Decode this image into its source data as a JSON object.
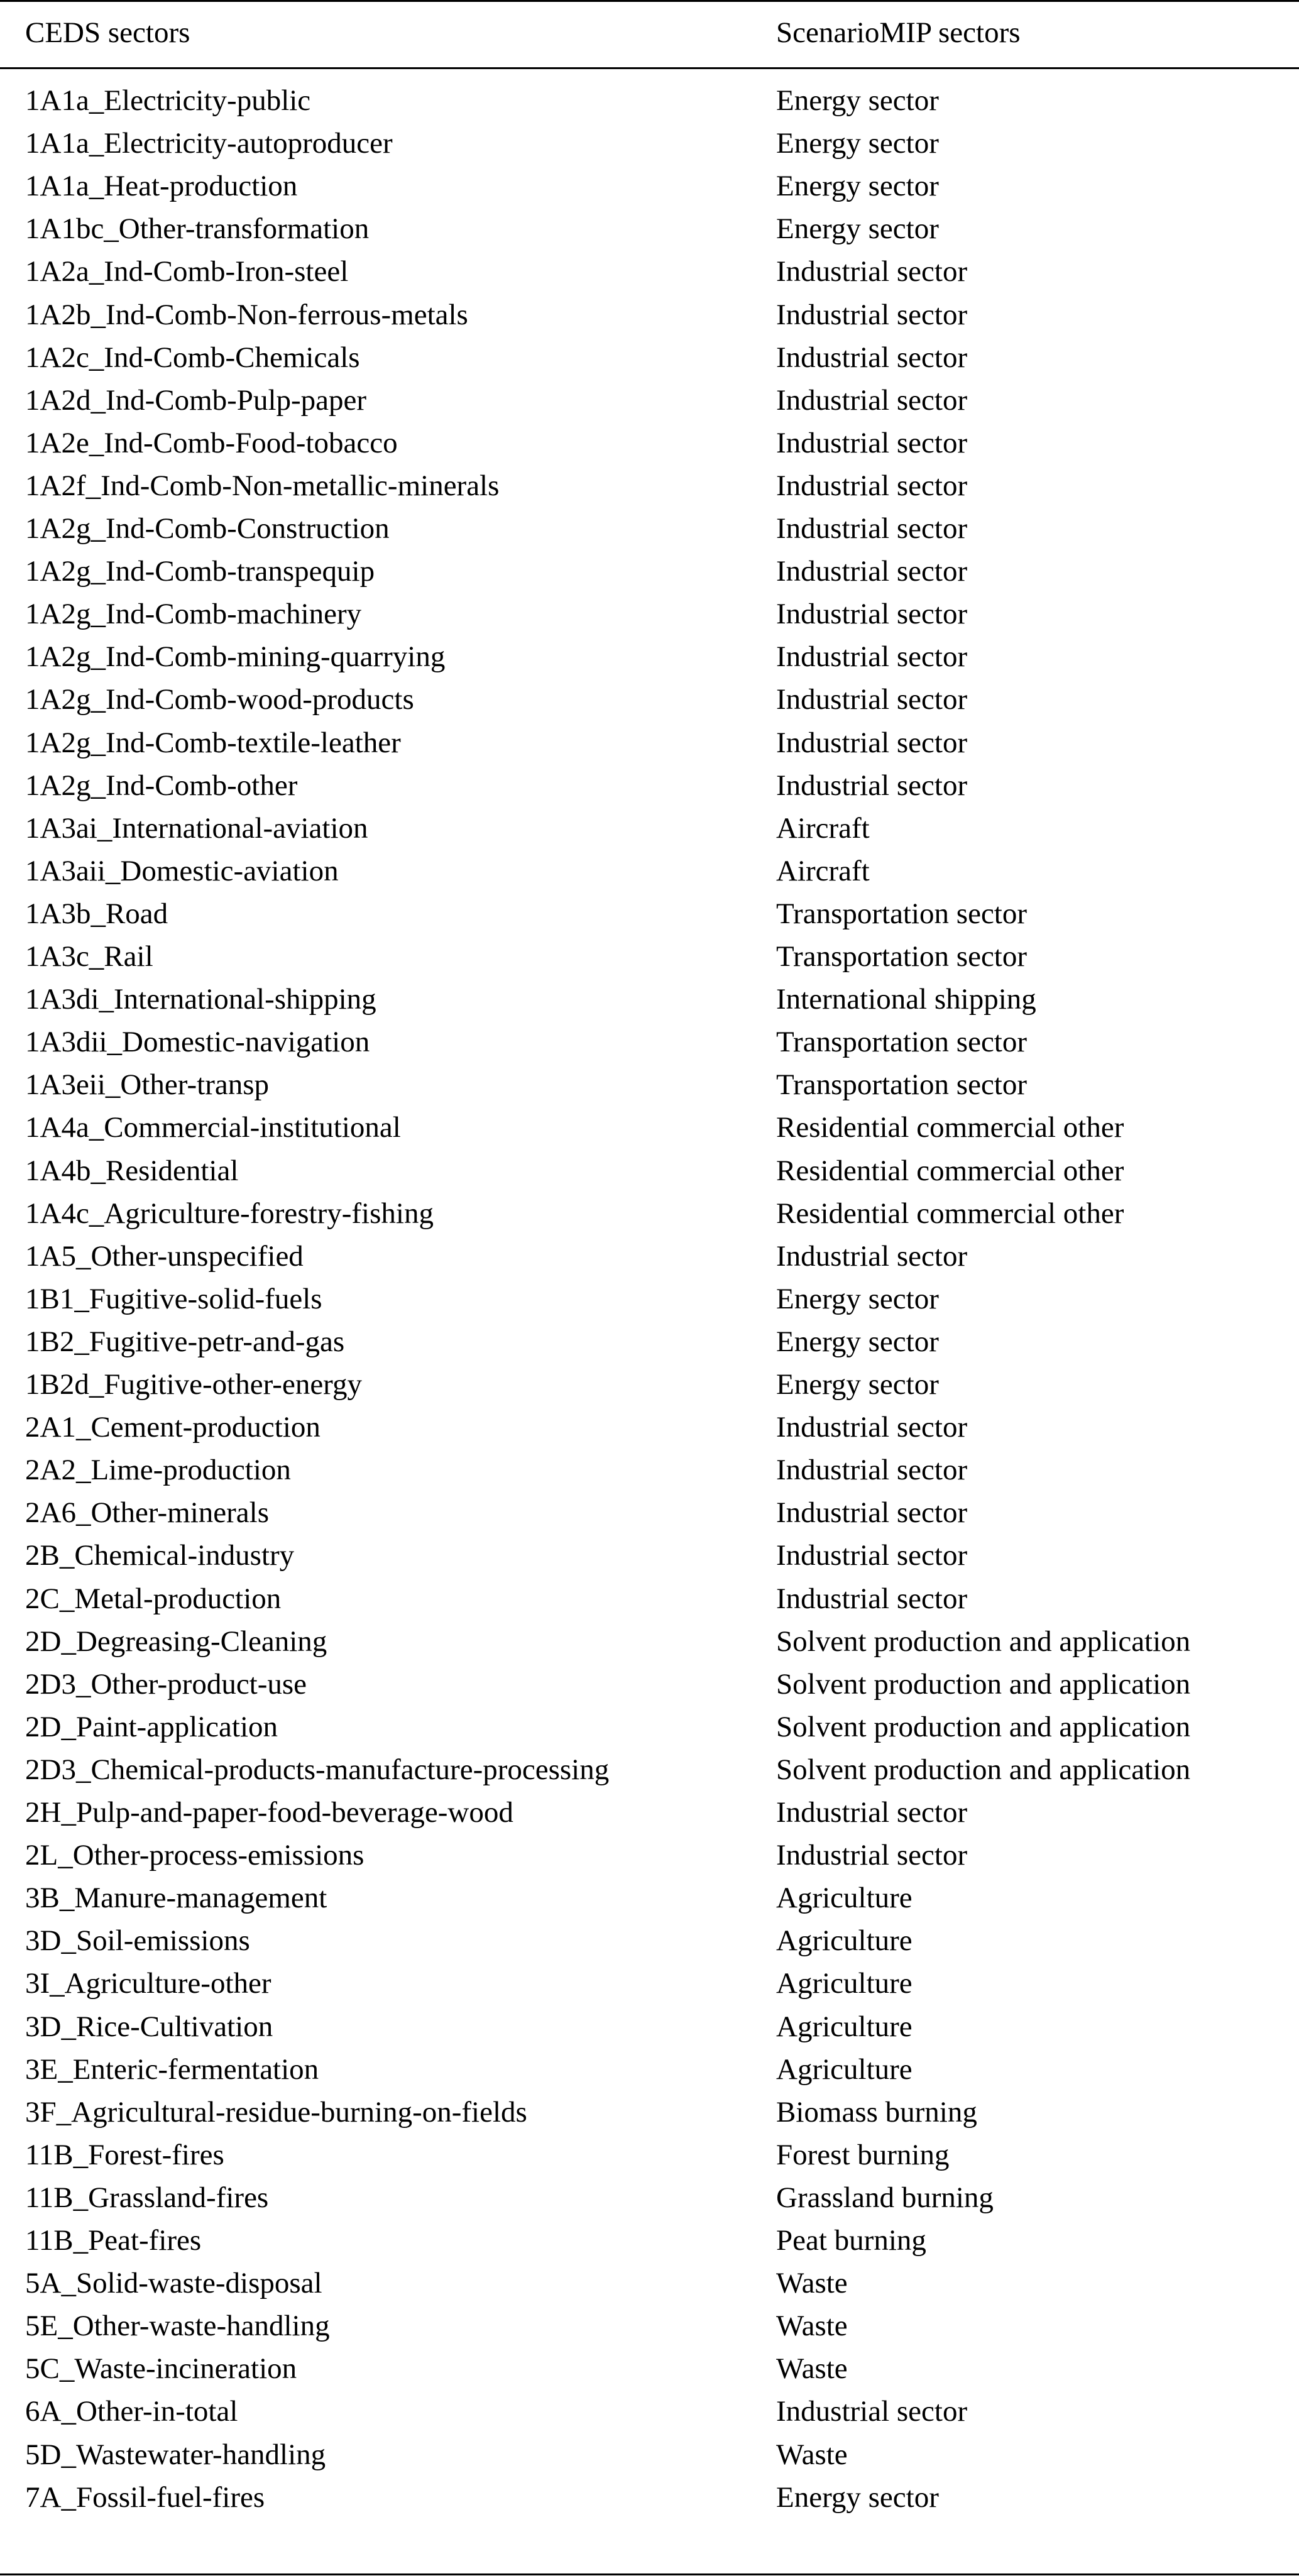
{
  "table": {
    "headers": [
      "CEDS sectors",
      "ScenarioMIP sectors"
    ],
    "rows": [
      [
        "1A1a_Electricity-public",
        "Energy sector"
      ],
      [
        "1A1a_Electricity-autoproducer",
        "Energy sector"
      ],
      [
        "1A1a_Heat-production",
        "Energy sector"
      ],
      [
        "1A1bc_Other-transformation",
        "Energy sector"
      ],
      [
        "1A2a_Ind-Comb-Iron-steel",
        "Industrial sector"
      ],
      [
        "1A2b_Ind-Comb-Non-ferrous-metals",
        "Industrial sector"
      ],
      [
        "1A2c_Ind-Comb-Chemicals",
        "Industrial sector"
      ],
      [
        "1A2d_Ind-Comb-Pulp-paper",
        "Industrial sector"
      ],
      [
        "1A2e_Ind-Comb-Food-tobacco",
        "Industrial sector"
      ],
      [
        "1A2f_Ind-Comb-Non-metallic-minerals",
        "Industrial sector"
      ],
      [
        "1A2g_Ind-Comb-Construction",
        "Industrial sector"
      ],
      [
        "1A2g_Ind-Comb-transpequip",
        "Industrial sector"
      ],
      [
        "1A2g_Ind-Comb-machinery",
        "Industrial sector"
      ],
      [
        "1A2g_Ind-Comb-mining-quarrying",
        "Industrial sector"
      ],
      [
        "1A2g_Ind-Comb-wood-products",
        "Industrial sector"
      ],
      [
        "1A2g_Ind-Comb-textile-leather",
        "Industrial sector"
      ],
      [
        "1A2g_Ind-Comb-other",
        "Industrial sector"
      ],
      [
        "1A3ai_International-aviation",
        "Aircraft"
      ],
      [
        "1A3aii_Domestic-aviation",
        "Aircraft"
      ],
      [
        "1A3b_Road",
        "Transportation sector"
      ],
      [
        "1A3c_Rail",
        "Transportation sector"
      ],
      [
        "1A3di_International-shipping",
        "International shipping"
      ],
      [
        "1A3dii_Domestic-navigation",
        "Transportation sector"
      ],
      [
        "1A3eii_Other-transp",
        "Transportation sector"
      ],
      [
        "1A4a_Commercial-institutional",
        "Residential commercial other"
      ],
      [
        "1A4b_Residential",
        "Residential commercial other"
      ],
      [
        "1A4c_Agriculture-forestry-fishing",
        "Residential commercial other"
      ],
      [
        "1A5_Other-unspecified",
        "Industrial sector"
      ],
      [
        "1B1_Fugitive-solid-fuels",
        "Energy sector"
      ],
      [
        "1B2_Fugitive-petr-and-gas",
        "Energy sector"
      ],
      [
        "1B2d_Fugitive-other-energy",
        "Energy sector"
      ],
      [
        "2A1_Cement-production",
        "Industrial sector"
      ],
      [
        "2A2_Lime-production",
        "Industrial sector"
      ],
      [
        "2A6_Other-minerals",
        "Industrial sector"
      ],
      [
        "2B_Chemical-industry",
        "Industrial sector"
      ],
      [
        "2C_Metal-production",
        "Industrial sector"
      ],
      [
        "2D_Degreasing-Cleaning",
        "Solvent production and application"
      ],
      [
        "2D3_Other-product-use",
        "Solvent production and application"
      ],
      [
        "2D_Paint-application",
        "Solvent production and application"
      ],
      [
        "2D3_Chemical-products-manufacture-processing",
        "Solvent production and application"
      ],
      [
        "2H_Pulp-and-paper-food-beverage-wood",
        "Industrial sector"
      ],
      [
        "2L_Other-process-emissions",
        "Industrial sector"
      ],
      [
        "3B_Manure-management",
        "Agriculture"
      ],
      [
        "3D_Soil-emissions",
        "Agriculture"
      ],
      [
        "3I_Agriculture-other",
        "Agriculture"
      ],
      [
        "3D_Rice-Cultivation",
        "Agriculture"
      ],
      [
        "3E_Enteric-fermentation",
        "Agriculture"
      ],
      [
        "3F_Agricultural-residue-burning-on-fields",
        "Biomass burning"
      ],
      [
        "11B_Forest-fires",
        "Forest burning"
      ],
      [
        "11B_Grassland-fires",
        "Grassland burning"
      ],
      [
        "11B_Peat-fires",
        "Peat burning"
      ],
      [
        "5A_Solid-waste-disposal",
        "Waste"
      ],
      [
        "5E_Other-waste-handling",
        "Waste"
      ],
      [
        "5C_Waste-incineration",
        "Waste"
      ],
      [
        "6A_Other-in-total",
        "Industrial sector"
      ],
      [
        "5D_Wastewater-handling",
        "Waste"
      ],
      [
        "7A_Fossil-fuel-fires",
        "Energy sector"
      ]
    ]
  }
}
